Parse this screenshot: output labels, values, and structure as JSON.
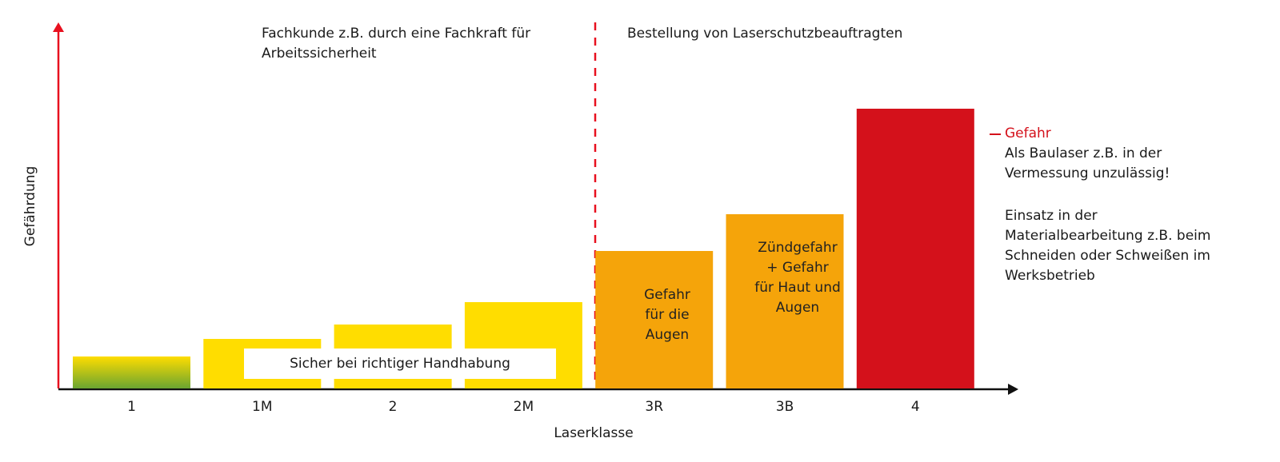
{
  "chart_data": {
    "type": "bar",
    "xlabel": "Laserklasse",
    "ylabel": "Gefährdung",
    "categories": [
      "1",
      "1M",
      "2",
      "2M",
      "3R",
      "3B",
      "4"
    ],
    "values": [
      40,
      62,
      80,
      108,
      172,
      218,
      350
    ],
    "ylim": [
      0,
      400
    ],
    "colors": [
      "gradient-yellow-green",
      "#ffdd00",
      "#ffdd00",
      "#ffdd00",
      "#f5a40a",
      "#f5a40a",
      "#d4111b"
    ],
    "region_left_label": "Fachkunde z.B. durch eine Fachkraft für\nArbeitssicherheit",
    "region_right_label": "Bestellung von Laserschutzbeauftragten",
    "safe_label": "Sicher bei richtiger Handhabung",
    "bar_annotations": {
      "3R": "Gefahr\nfür die\nAugen",
      "3B": "Zündgefahr\n+ Gefahr\nfür Haut und\nAugen"
    },
    "side_note": {
      "warning": "Gefahr",
      "line1": "Als Baulaser z.B. in der\nVermessung unzulässig!",
      "line2": "Einsatz in der\nMaterialbearbeitung z.B. beim\nSchneiden oder Schweißen im\nWerksbetrieb"
    },
    "axis_color": "#e8101f",
    "divider_color": "#e8101f"
  }
}
